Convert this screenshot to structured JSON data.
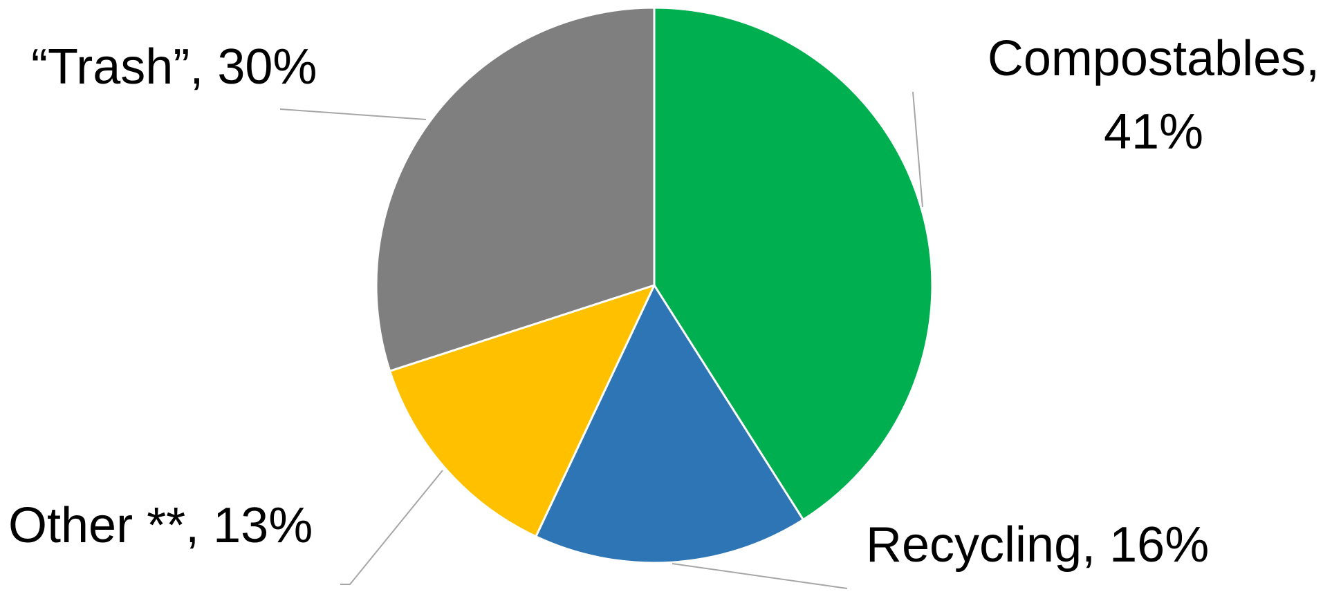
{
  "chart_data": {
    "type": "pie",
    "title": "",
    "slices": [
      {
        "label": "Compostables",
        "value": 41,
        "display_lines": [
          "Compostables,",
          "41%"
        ],
        "color": "#00B050"
      },
      {
        "label": "Recycling",
        "value": 16,
        "display_lines": [
          "Recycling, 16%"
        ],
        "color": "#2E75B6"
      },
      {
        "label": "Other **",
        "value": 13,
        "display_lines": [
          "Other **, 13%"
        ],
        "color": "#FFC000"
      },
      {
        "label": "“Trash”",
        "value": 30,
        "display_lines": [
          "“Trash”, 30%"
        ],
        "color": "#7F7F7F"
      }
    ],
    "start_direction": "12 o'clock",
    "direction": "clockwise",
    "legend": "none",
    "data_labels": "outside with leader lines"
  }
}
